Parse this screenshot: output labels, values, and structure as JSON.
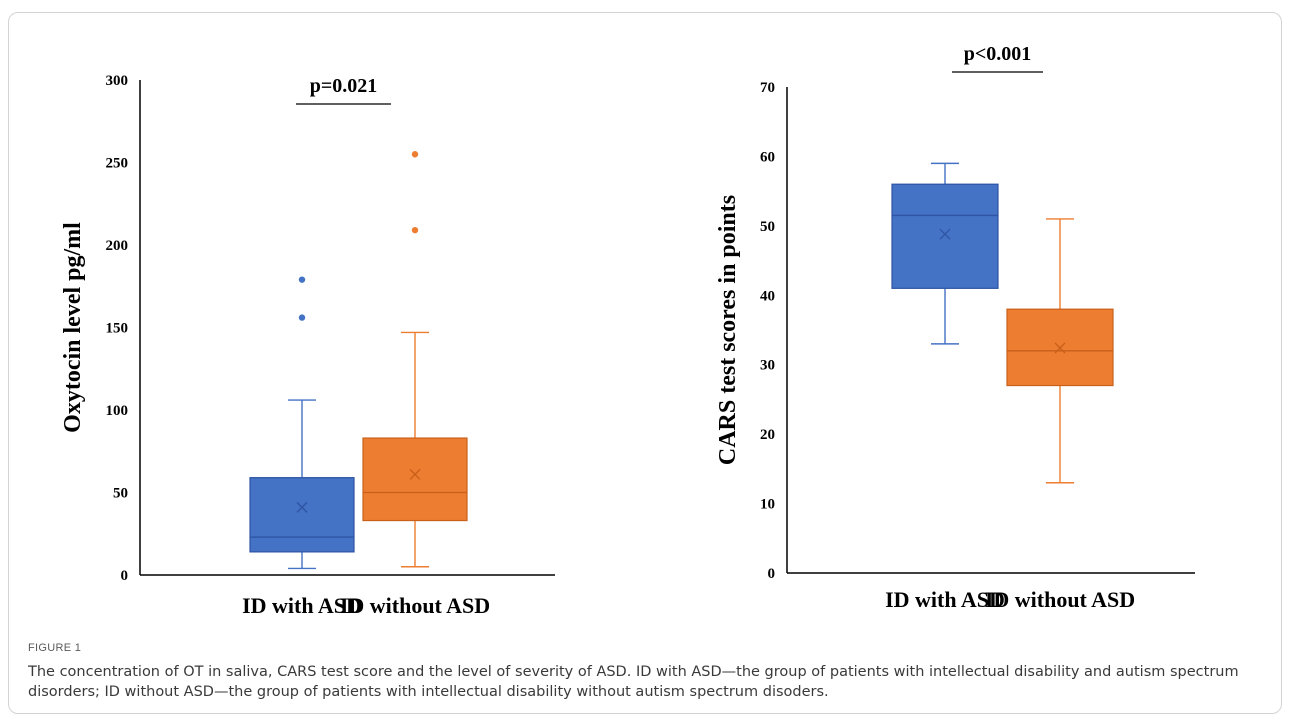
{
  "figure": {
    "label": "FIGURE 1",
    "caption": "The concentration of OT in saliva, CARS test score and the level of severity of ASD. ID with ASD—the group of patients with intellectual disability and autism spectrum disorders; ID without ASD—the group of patients with intellectual disability without autism spectrum disoders."
  },
  "colors": {
    "asd": "#4472c4",
    "asd_edge": "#2f55a4",
    "no_asd": "#ed7d31",
    "no_asd_edge": "#c9601a"
  },
  "chart_data": [
    {
      "type": "box",
      "ylabel": "Oxytocin level pg/ml",
      "ylim": [
        0,
        300
      ],
      "yticks": [
        0,
        50,
        100,
        150,
        200,
        250,
        300
      ],
      "categories": [
        "ID with ASD",
        "ID without ASD"
      ],
      "annotation": "p=0.021",
      "boxes": [
        {
          "name": "ID with ASD",
          "whisker_low": 4,
          "q1": 14,
          "median": 23,
          "q3": 59,
          "whisker_high": 106,
          "mean": 41,
          "outliers": [
            156,
            179
          ]
        },
        {
          "name": "ID without ASD",
          "whisker_low": 5,
          "q1": 33,
          "median": 50,
          "q3": 83,
          "whisker_high": 147,
          "mean": 61,
          "outliers": [
            209,
            255
          ]
        }
      ]
    },
    {
      "type": "box",
      "ylabel": "CARS test scores in points",
      "ylim": [
        0,
        70
      ],
      "yticks": [
        0,
        10,
        20,
        30,
        40,
        50,
        60,
        70
      ],
      "categories": [
        "ID with ASD",
        "ID without ASD"
      ],
      "annotation": "p<0.001",
      "boxes": [
        {
          "name": "ID with ASD",
          "whisker_low": 33,
          "q1": 41,
          "median": 51.5,
          "q3": 56,
          "whisker_high": 59,
          "mean": 48.8,
          "outliers": []
        },
        {
          "name": "ID without ASD",
          "whisker_low": 13,
          "q1": 27,
          "median": 32,
          "q3": 38,
          "whisker_high": 51,
          "mean": 32.4,
          "outliers": []
        }
      ]
    }
  ]
}
